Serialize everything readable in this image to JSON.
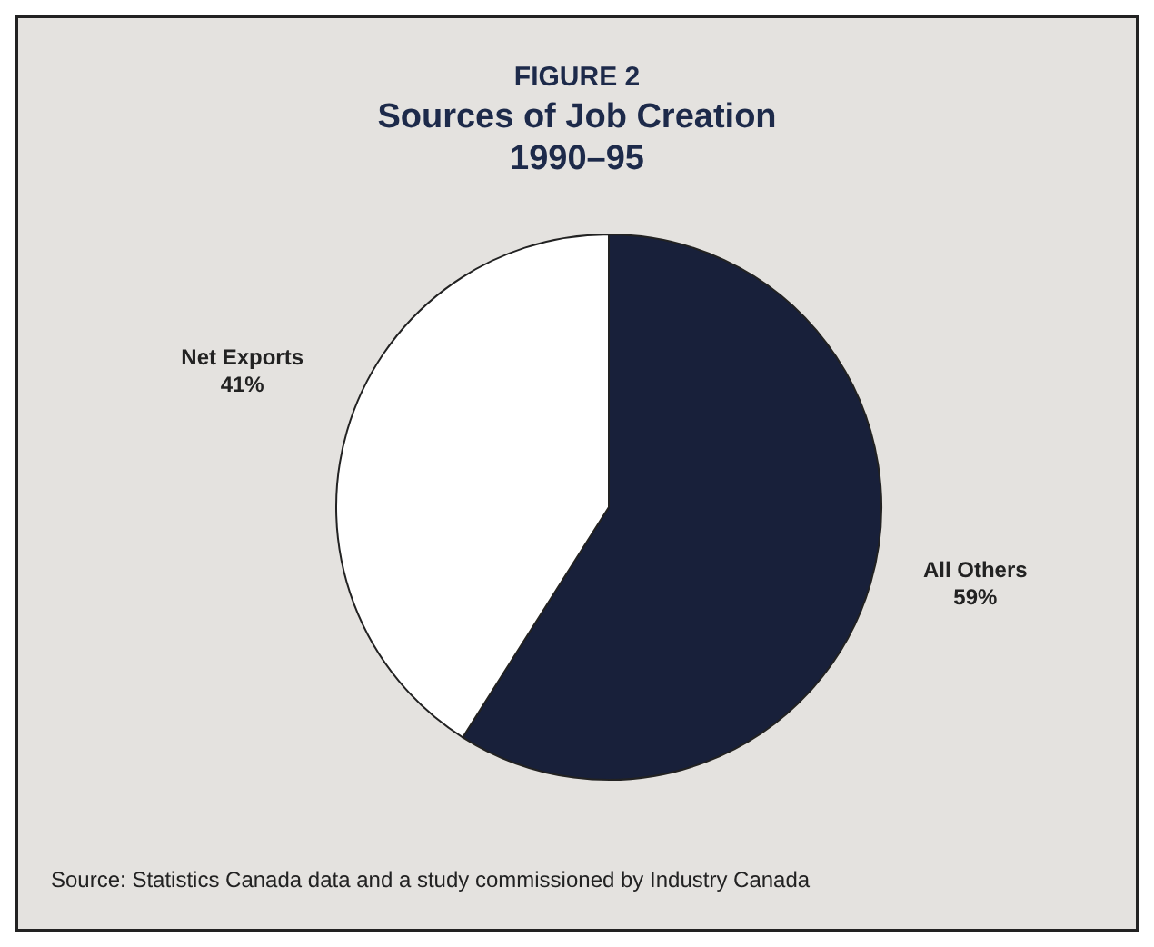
{
  "chart_data": {
    "type": "pie",
    "title": "FIGURE 2",
    "subtitle": "Sources of Job Creation 1990–95",
    "categories": [
      "All Others",
      "Net Exports"
    ],
    "values": [
      59,
      41
    ],
    "colors": [
      "#18203a",
      "#ffffff"
    ],
    "value_labels": [
      "59%",
      "41%"
    ],
    "legend": false,
    "annotations": [
      "Source:  Statistics Canada data and a study commissioned by Industry Canada"
    ]
  }
}
